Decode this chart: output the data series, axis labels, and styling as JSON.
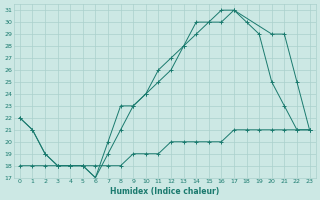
{
  "xlabel": "Humidex (Indice chaleur)",
  "xlim": [
    -0.5,
    23.5
  ],
  "ylim": [
    17,
    31.5
  ],
  "yticks": [
    17,
    18,
    19,
    20,
    21,
    22,
    23,
    24,
    25,
    26,
    27,
    28,
    29,
    30,
    31
  ],
  "xticks": [
    0,
    1,
    2,
    3,
    4,
    5,
    6,
    7,
    8,
    9,
    10,
    11,
    12,
    13,
    14,
    15,
    16,
    17,
    18,
    19,
    20,
    21,
    22,
    23
  ],
  "xtick_labels": [
    "0",
    "1",
    "2",
    "3",
    "4",
    "5",
    "6",
    "7",
    "8",
    "9",
    "10",
    "11",
    "12",
    "13",
    "14",
    "15",
    "16",
    "17",
    "18",
    "19",
    "20",
    "21",
    "22",
    "23"
  ],
  "line_color": "#1a7a6e",
  "bg_color": "#cce8e4",
  "grid_color": "#aad0cc",
  "line1_x": [
    0,
    1,
    2,
    3,
    4,
    5,
    6,
    7,
    8,
    9,
    10,
    11,
    12,
    13,
    14,
    15,
    16,
    17,
    18,
    19,
    20,
    21,
    22,
    23
  ],
  "line1_y": [
    22,
    21,
    19,
    18,
    18,
    18,
    17,
    19,
    21,
    23,
    24,
    25,
    26,
    28,
    29,
    30,
    30,
    31,
    30,
    29,
    25,
    23,
    21,
    21
  ],
  "line2_x": [
    0,
    1,
    2,
    3,
    4,
    5,
    6,
    7,
    8,
    9,
    10,
    11,
    12,
    13,
    14,
    15,
    16,
    17,
    20,
    21,
    22,
    23
  ],
  "line2_y": [
    22,
    21,
    19,
    18,
    18,
    18,
    17,
    20,
    23,
    23,
    24,
    26,
    27,
    28,
    30,
    30,
    31,
    31,
    29,
    29,
    25,
    21
  ],
  "line3_x": [
    0,
    1,
    2,
    3,
    4,
    5,
    6,
    7,
    8,
    9,
    10,
    11,
    12,
    13,
    14,
    15,
    16,
    17,
    18,
    19,
    20,
    21,
    22,
    23
  ],
  "line3_y": [
    18,
    18,
    18,
    18,
    18,
    18,
    18,
    18,
    18,
    19,
    19,
    19,
    20,
    20,
    20,
    20,
    20,
    21,
    21,
    21,
    21,
    21,
    21,
    21
  ]
}
